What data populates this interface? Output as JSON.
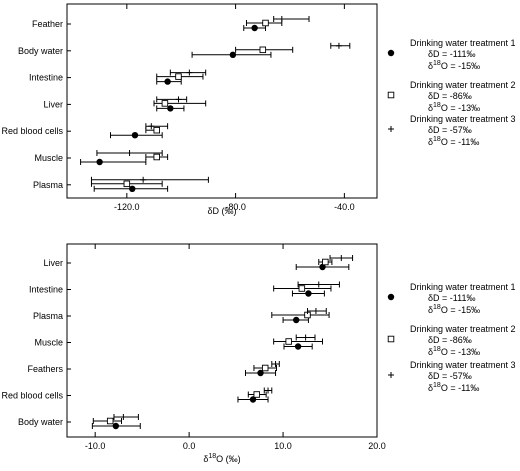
{
  "chart_data": [
    {
      "type": "dot-errorbar",
      "xlabel_main": "δD",
      "xlabel_unit": "(‰)",
      "xlim": [
        -142,
        -28
      ],
      "xticks": [
        -120,
        -80,
        -40
      ],
      "xtick_labels": [
        "-120.0",
        "-80.0",
        "-40.0"
      ],
      "categories": [
        "Feather",
        "Body water",
        "Intestine",
        "Liver",
        "Red blood cells",
        "Muscle",
        "Plasma"
      ],
      "series": [
        {
          "marker": "filled-circle",
          "values": [
            -73,
            -81,
            -105,
            -104,
            -117,
            -130,
            -118
          ],
          "low": [
            -77,
            -96,
            -109,
            -109,
            -126,
            -137,
            -132
          ],
          "high": [
            -69,
            -67,
            -100,
            -99,
            -107,
            -113,
            -105
          ]
        },
        {
          "marker": "open-square",
          "values": [
            -69,
            -70,
            -101,
            -106,
            -109,
            -109,
            -120
          ],
          "low": [
            -76,
            -80,
            -109,
            -110,
            -113,
            -113,
            -133
          ],
          "high": [
            -63,
            -59,
            -92,
            -91,
            -108,
            -105,
            -107
          ]
        },
        {
          "marker": "plus",
          "values": [
            -63,
            -42,
            -97,
            -101,
            -111,
            -119,
            -114
          ],
          "low": [
            -66,
            -45,
            -104,
            -109,
            -113,
            -131,
            -133
          ],
          "high": [
            -53,
            -38,
            -91,
            -98,
            -105,
            -107,
            -90
          ]
        }
      ],
      "legend": [
        {
          "title": "Drinking water treatment 1",
          "dD": "δD = -111‰",
          "o18_prefix": "δ",
          "o18_sup": "18",
          "o18_suffix": "O = -15‰"
        },
        {
          "title": "Drinking water treatment 2",
          "dD": "δD = -86‰",
          "o18_prefix": "δ",
          "o18_sup": "18",
          "o18_suffix": "O = -13‰"
        },
        {
          "title": "Drinking water treatment 3",
          "dD": "δD = -57‰",
          "o18_prefix": "δ",
          "o18_sup": "18",
          "o18_suffix": "O = -11‰"
        }
      ]
    },
    {
      "type": "dot-errorbar",
      "xlabel_prefix": "δ",
      "xlabel_sup": "18",
      "xlabel_suffix": "O (‰)",
      "xlim": [
        -13,
        20
      ],
      "xticks": [
        -10,
        0,
        10,
        20
      ],
      "xtick_labels": [
        "-10.0",
        "0.0",
        "10.0",
        "20.0"
      ],
      "categories": [
        "Liver",
        "Intestine",
        "Plasma",
        "Muscle",
        "Feathers",
        "Red blood cells",
        "Body water"
      ],
      "series": [
        {
          "marker": "filled-circle",
          "values": [
            14.2,
            12.7,
            11.4,
            11.6,
            7.6,
            6.8,
            -7.8
          ],
          "low": [
            11.4,
            11.0,
            10.0,
            10.1,
            6.0,
            5.2,
            -10.3
          ],
          "high": [
            17.0,
            14.4,
            12.7,
            13.1,
            9.2,
            8.4,
            -5.2
          ]
        },
        {
          "marker": "open-square",
          "values": [
            14.5,
            12.0,
            12.6,
            10.6,
            8.1,
            7.2,
            -8.4
          ],
          "low": [
            13.8,
            9.0,
            8.8,
            9.0,
            6.9,
            6.3,
            -10.2
          ],
          "high": [
            15.2,
            15.1,
            14.9,
            14.2,
            9.3,
            8.2,
            -7.2
          ]
        },
        {
          "marker": "plus",
          "values": [
            16.2,
            13.8,
            13.5,
            12.4,
            9.2,
            8.4,
            -7.0
          ],
          "low": [
            15.0,
            11.6,
            12.6,
            11.4,
            8.8,
            8.0,
            -8.0
          ],
          "high": [
            17.4,
            16.0,
            14.6,
            13.4,
            9.6,
            8.8,
            -5.4
          ]
        }
      ],
      "legend": [
        {
          "title": "Drinking water treatment 1",
          "dD": "δD = -111‰",
          "o18_prefix": "δ",
          "o18_sup": "18",
          "o18_suffix": "O = -15‰"
        },
        {
          "title": "Drinking water treatment 2",
          "dD": "δD = -86‰",
          "o18_prefix": "δ",
          "o18_sup": "18",
          "o18_suffix": "O = -13‰"
        },
        {
          "title": "Drinking water treatment 3",
          "dD": "δD = -57‰",
          "o18_prefix": "δ",
          "o18_sup": "18",
          "o18_suffix": "O = -11‰"
        }
      ]
    }
  ]
}
